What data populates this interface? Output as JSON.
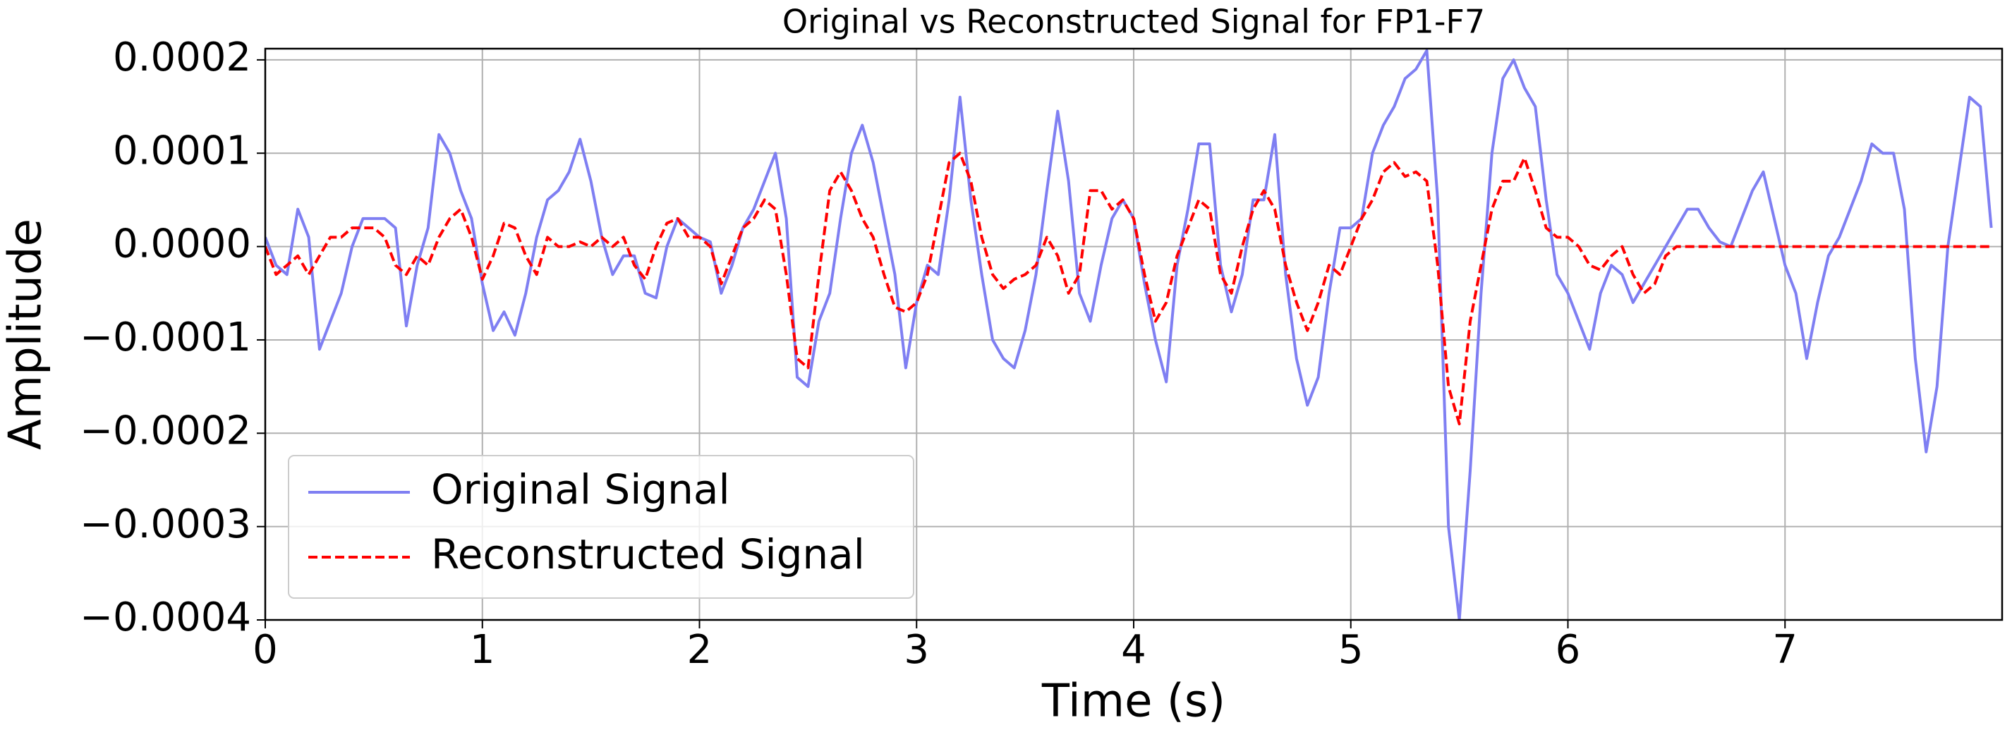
{
  "chart_data": {
    "type": "line",
    "title": "Original vs Reconstructed Signal for FP1-F7",
    "x_label": "Time (s)",
    "y_label": "Amplitude",
    "xlim": [
      0,
      8
    ],
    "ylim": [
      -0.0004,
      0.000212
    ],
    "xticks": [
      0,
      1,
      2,
      3,
      4,
      5,
      6,
      7
    ],
    "yticks": [
      {
        "value": -0.0004,
        "label": "−0.0004"
      },
      {
        "value": -0.0003,
        "label": "−0.0003"
      },
      {
        "value": -0.0002,
        "label": "−0.0002"
      },
      {
        "value": -0.0001,
        "label": "−0.0001"
      },
      {
        "value": 0,
        "label": "0.0000"
      },
      0.0001,
      0.0002
    ],
    "grid": true,
    "legend": "lower left",
    "x": [
      0,
      0.05,
      0.1,
      0.15,
      0.2,
      0.25,
      0.3,
      0.35,
      0.4,
      0.45,
      0.5,
      0.55,
      0.6,
      0.65,
      0.7,
      0.75,
      0.8,
      0.85,
      0.9,
      0.95,
      1,
      1.05,
      1.1,
      1.15,
      1.2,
      1.25,
      1.3,
      1.35,
      1.4,
      1.45,
      1.5,
      1.55,
      1.6,
      1.65,
      1.7,
      1.75,
      1.8,
      1.85,
      1.9,
      1.95,
      2,
      2.05,
      2.1,
      2.15,
      2.2,
      2.25,
      2.3,
      2.35,
      2.4,
      2.45,
      2.5,
      2.55,
      2.6,
      2.65,
      2.7,
      2.75,
      2.8,
      2.85,
      2.9,
      2.95,
      3,
      3.05,
      3.1,
      3.15,
      3.2,
      3.25,
      3.3,
      3.35,
      3.4,
      3.45,
      3.5,
      3.55,
      3.6,
      3.65,
      3.7,
      3.75,
      3.8,
      3.85,
      3.9,
      3.95,
      4,
      4.05,
      4.1,
      4.15,
      4.2,
      4.25,
      4.3,
      4.35,
      4.4,
      4.45,
      4.5,
      4.55,
      4.6,
      4.65,
      4.7,
      4.75,
      4.8,
      4.85,
      4.9,
      4.95,
      5,
      5.05,
      5.1,
      5.15,
      5.2,
      5.25,
      5.3,
      5.35,
      5.4,
      5.45,
      5.5,
      5.55,
      5.6,
      5.65,
      5.7,
      5.75,
      5.8,
      5.85,
      5.9,
      5.95,
      6,
      6.05,
      6.1,
      6.15,
      6.2,
      6.25,
      6.3,
      6.35,
      6.4,
      6.45,
      6.5,
      6.55,
      6.6,
      6.65,
      6.7,
      6.75,
      6.8,
      6.85,
      6.9,
      6.95,
      7,
      7.05,
      7.1,
      7.15,
      7.2,
      7.25,
      7.3,
      7.35,
      7.4,
      7.45,
      7.5,
      7.55,
      7.6,
      7.65,
      7.7,
      7.75,
      7.8,
      7.85,
      7.9,
      7.95
    ],
    "series": [
      {
        "name": "Original Signal",
        "color": "#7f7ff2",
        "style": "solid",
        "values": [
          1e-05,
          -2e-05,
          -3e-05,
          4e-05,
          1e-05,
          -0.00011,
          -8e-05,
          -5e-05,
          0,
          3e-05,
          3e-05,
          3e-05,
          2e-05,
          -8.5e-05,
          -2e-05,
          2e-05,
          0.00012,
          0.0001,
          6e-05,
          3e-05,
          -4e-05,
          -9e-05,
          -7e-05,
          -9.5e-05,
          -5e-05,
          1e-05,
          5e-05,
          6e-05,
          8e-05,
          0.000115,
          7e-05,
          1e-05,
          -3e-05,
          -1e-05,
          -1e-05,
          -5e-05,
          -5.5e-05,
          0,
          3e-05,
          2e-05,
          1e-05,
          5e-06,
          -5e-05,
          -2e-05,
          2e-05,
          4e-05,
          7e-05,
          0.0001,
          3e-05,
          -0.00014,
          -0.00015,
          -8e-05,
          -5e-05,
          3e-05,
          0.0001,
          0.00013,
          9e-05,
          3e-05,
          -3e-05,
          -0.00013,
          -6e-05,
          -2e-05,
          -3e-05,
          5e-05,
          0.00016,
          5e-05,
          -3e-05,
          -0.0001,
          -0.00012,
          -0.00013,
          -9e-05,
          -3e-05,
          6e-05,
          0.000145,
          7e-05,
          -5e-05,
          -8e-05,
          -2e-05,
          3e-05,
          5e-05,
          3e-05,
          -4e-05,
          -0.0001,
          -0.000145,
          -2e-05,
          4e-05,
          0.00011,
          0.00011,
          -2e-05,
          -7e-05,
          -3e-05,
          5e-05,
          5e-05,
          0.00012,
          -3e-05,
          -0.00012,
          -0.00017,
          -0.00014,
          -5e-05,
          2e-05,
          2e-05,
          3e-05,
          0.0001,
          0.00013,
          0.00015,
          0.00018,
          0.00019,
          0.00021,
          5e-05,
          -0.0003,
          -0.0004,
          -0.00024,
          -5e-05,
          0.0001,
          0.00018,
          0.0002,
          0.00017,
          0.00015,
          5e-05,
          -3e-05,
          -5e-05,
          -8e-05,
          -0.00011,
          -5e-05,
          -2e-05,
          -3e-05,
          -6e-05,
          -4e-05,
          -2e-05,
          0,
          2e-05,
          4e-05,
          4e-05,
          2e-05,
          5e-06,
          0,
          3e-05,
          6e-05,
          8e-05,
          3e-05,
          -2e-05,
          -5e-05,
          -0.00012,
          -6e-05,
          -1e-05,
          1e-05,
          4e-05,
          7e-05,
          0.00011,
          0.0001,
          0.0001,
          4e-05,
          -0.00012,
          -0.00022,
          -0.00015,
          0,
          8e-05,
          0.00016,
          0.00015,
          2e-05
        ]
      },
      {
        "name": "Reconstructed Signal",
        "color": "#ff0000",
        "style": "dashed",
        "values": [
          0,
          -3e-05,
          -2e-05,
          -1e-05,
          -3e-05,
          -1e-05,
          1e-05,
          1e-05,
          2e-05,
          2e-05,
          2e-05,
          1e-05,
          -2e-05,
          -3e-05,
          -1e-05,
          -2e-05,
          1e-05,
          3e-05,
          4e-05,
          1e-05,
          -3.5e-05,
          -1e-05,
          2.5e-05,
          2e-05,
          -1e-05,
          -3e-05,
          1e-05,
          0,
          0,
          5e-06,
          0,
          1e-05,
          0,
          1e-05,
          -2e-05,
          -3.5e-05,
          0,
          2.5e-05,
          3e-05,
          1e-05,
          1e-05,
          0,
          -4e-05,
          -1e-05,
          2e-05,
          3e-05,
          5e-05,
          4e-05,
          -3e-05,
          -0.00012,
          -0.00013,
          -3e-05,
          6e-05,
          8e-05,
          6e-05,
          3e-05,
          1e-05,
          -3e-05,
          -6.5e-05,
          -7e-05,
          -6e-05,
          -3e-05,
          3e-05,
          9e-05,
          0.0001,
          7e-05,
          1e-05,
          -3e-05,
          -4.5e-05,
          -3.5e-05,
          -3e-05,
          -2e-05,
          1e-05,
          -1e-05,
          -5e-05,
          -3e-05,
          6e-05,
          6e-05,
          4e-05,
          5e-05,
          3e-05,
          -3e-05,
          -8e-05,
          -6e-05,
          -1e-05,
          2e-05,
          5e-05,
          4e-05,
          -3e-05,
          -5e-05,
          0,
          4e-05,
          6e-05,
          4e-05,
          -2e-05,
          -6e-05,
          -9e-05,
          -6e-05,
          -2e-05,
          -3e-05,
          0,
          3e-05,
          5e-05,
          8e-05,
          9e-05,
          7.5e-05,
          8e-05,
          7e-05,
          -2e-05,
          -0.00015,
          -0.00019,
          -8e-05,
          -2e-05,
          4e-05,
          7e-05,
          7e-05,
          9.5e-05,
          6e-05,
          2e-05,
          1e-05,
          1e-05,
          0,
          -2e-05,
          -2.5e-05,
          -1e-05,
          0,
          -3e-05,
          -5e-05,
          -4e-05,
          -1e-05,
          0,
          0,
          0,
          0,
          0,
          0,
          0,
          0,
          0,
          0,
          0,
          0,
          0,
          0,
          0,
          0,
          0,
          0,
          0,
          0,
          0,
          0,
          0,
          0,
          0,
          0,
          0,
          0,
          0,
          0
        ]
      }
    ]
  }
}
